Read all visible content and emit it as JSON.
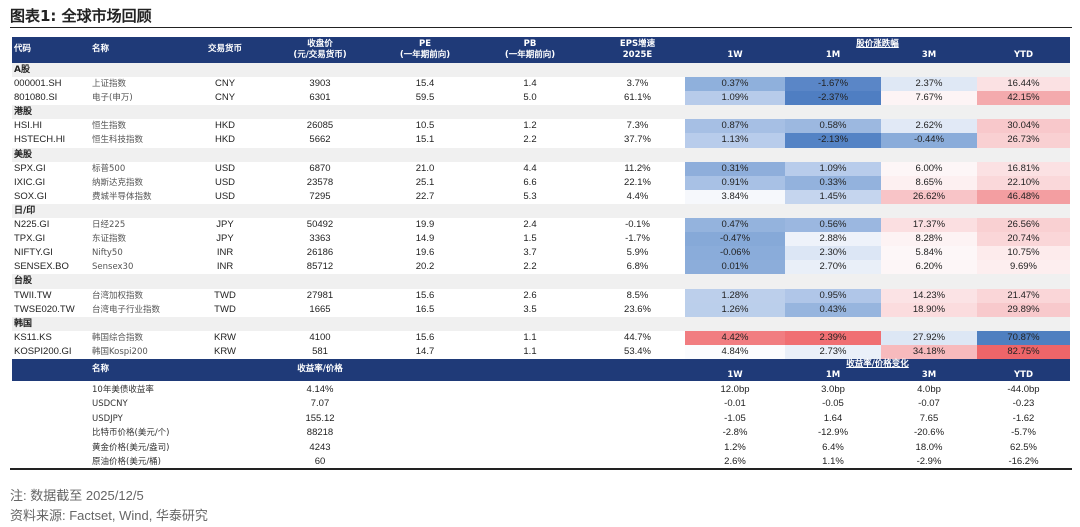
{
  "title": "图表1:  全球市场回顾",
  "header": {
    "code": "代码",
    "name": "名称",
    "currency": "交易货币",
    "close": "收盘价",
    "close_sub": "(元/交易货币)",
    "pe": "PE",
    "pe_sub": "(一年期前向)",
    "pb": "PB",
    "pb_sub": "(一年期前向)",
    "eps": "EPS增速",
    "eps_sub": "2025E",
    "perf": "股价涨跌幅",
    "w1": "1W",
    "m1": "1M",
    "m3": "3M",
    "ytd": "YTD"
  },
  "sections": [
    {
      "label": "A股",
      "rows": [
        {
          "code": "000001.SH",
          "name": "上证指数",
          "cur": "CNY",
          "close": "3903",
          "pe": "15.4",
          "pb": "1.4",
          "eps": "3.7%",
          "perf": [
            [
              "0.37%",
              "#8fb0dc"
            ],
            [
              "-1.67%",
              "#5a86c7"
            ],
            [
              "2.37%",
              "#dfe8f5"
            ],
            [
              "16.44%",
              "#fbe1e3"
            ]
          ]
        },
        {
          "code": "801080.SI",
          "name": "电子(申万)",
          "cur": "CNY",
          "close": "6301",
          "pe": "59.5",
          "pb": "5.0",
          "eps": "61.1%",
          "perf": [
            [
              "1.09%",
              "#b7cbea"
            ],
            [
              "-2.37%",
              "#4f7ec2"
            ],
            [
              "7.67%",
              "#fdf4f5"
            ],
            [
              "42.15%",
              "#f4aaad"
            ]
          ]
        }
      ]
    },
    {
      "label": "港股",
      "rows": [
        {
          "code": "HSI.HI",
          "name": "恒生指数",
          "cur": "HKD",
          "close": "26085",
          "pe": "10.5",
          "pb": "1.2",
          "eps": "7.3%",
          "perf": [
            [
              "0.87%",
              "#a6bfe4"
            ],
            [
              "0.58%",
              "#9cb8e0"
            ],
            [
              "2.62%",
              "#e1e9f6"
            ],
            [
              "30.04%",
              "#f8c8cb"
            ]
          ]
        },
        {
          "code": "HSTECH.HI",
          "name": "恒生科技指数",
          "cur": "HKD",
          "close": "5662",
          "pe": "15.1",
          "pb": "2.2",
          "eps": "37.7%",
          "perf": [
            [
              "1.13%",
              "#b8cceb"
            ],
            [
              "-2.13%",
              "#5483c5"
            ],
            [
              "-0.44%",
              "#8aacda"
            ],
            [
              "26.73%",
              "#f9d0d2"
            ]
          ]
        }
      ]
    },
    {
      "label": "美股",
      "rows": [
        {
          "code": "SPX.GI",
          "name": "标普500",
          "cur": "USD",
          "close": "6870",
          "pe": "21.0",
          "pb": "4.4",
          "eps": "11.2%",
          "perf": [
            [
              "0.31%",
              "#8eaedb"
            ],
            [
              "1.09%",
              "#b8cceb"
            ],
            [
              "6.00%",
              "#fdf6f7"
            ],
            [
              "16.81%",
              "#fbe1e3"
            ]
          ]
        },
        {
          "code": "IXIC.GI",
          "name": "纳斯达克指数",
          "cur": "USD",
          "close": "23578",
          "pe": "25.1",
          "pb": "6.6",
          "eps": "22.1%",
          "perf": [
            [
              "0.91%",
              "#a8c1e5"
            ],
            [
              "0.33%",
              "#93b2dd"
            ],
            [
              "8.65%",
              "#fdf0f1"
            ],
            [
              "22.10%",
              "#fad8da"
            ]
          ]
        },
        {
          "code": "SOX.GI",
          "name": "费城半导体指数",
          "cur": "USD",
          "close": "7295",
          "pe": "22.7",
          "pb": "5.3",
          "eps": "4.4%",
          "perf": [
            [
              "3.84%",
              "#f6f8fc"
            ],
            [
              "1.45%",
              "#c5d5ee"
            ],
            [
              "26.62%",
              "#f8c4c7"
            ],
            [
              "46.48%",
              "#f39ea1"
            ]
          ]
        }
      ]
    },
    {
      "label": "日/印",
      "rows": [
        {
          "code": "N225.GI",
          "name": "日经225",
          "cur": "JPY",
          "close": "50492",
          "pe": "19.9",
          "pb": "2.4",
          "eps": "-0.1%",
          "perf": [
            [
              "0.47%",
              "#94b3dd"
            ],
            [
              "0.56%",
              "#9bb7e0"
            ],
            [
              "17.37%",
              "#fbdfe1"
            ],
            [
              "26.56%",
              "#f9d0d2"
            ]
          ]
        },
        {
          "code": "TPX.GI",
          "name": "东证指数",
          "cur": "JPY",
          "close": "3363",
          "pe": "14.9",
          "pb": "1.5",
          "eps": "-1.7%",
          "perf": [
            [
              "-0.47%",
              "#86a9d8"
            ],
            [
              "2.88%",
              "#eef2fa"
            ],
            [
              "8.28%",
              "#fdf3f4"
            ],
            [
              "20.74%",
              "#fad6d8"
            ]
          ]
        },
        {
          "code": "NIFTY.GI",
          "name": "Nifty50",
          "cur": "INR",
          "close": "26186",
          "pe": "19.6",
          "pb": "3.7",
          "eps": "5.9%",
          "perf": [
            [
              "-0.06%",
              "#8aacda"
            ],
            [
              "2.30%",
              "#dce6f5"
            ],
            [
              "5.84%",
              "#fdf7f8"
            ],
            [
              "10.75%",
              "#fdebec"
            ]
          ]
        },
        {
          "code": "SENSEX.BO",
          "name": "Sensex30",
          "cur": "INR",
          "close": "85712",
          "pe": "20.2",
          "pb": "2.2",
          "eps": "6.8%",
          "perf": [
            [
              "0.01%",
              "#8cadda"
            ],
            [
              "2.70%",
              "#e9eff8"
            ],
            [
              "6.20%",
              "#fdf6f7"
            ],
            [
              "9.69%",
              "#fdeeef"
            ]
          ]
        }
      ]
    },
    {
      "label": "台股",
      "rows": [
        {
          "code": "TWII.TW",
          "name": "台湾加权指数",
          "cur": "TWD",
          "close": "27981",
          "pe": "15.6",
          "pb": "2.6",
          "eps": "8.5%",
          "perf": [
            [
              "1.28%",
              "#bccfeb"
            ],
            [
              "0.95%",
              "#b0c6e8"
            ],
            [
              "14.23%",
              "#fbe3e5"
            ],
            [
              "21.47%",
              "#fad6d8"
            ]
          ]
        },
        {
          "code": "TWSE020.TW",
          "name": "台湾电子行业指数",
          "cur": "TWD",
          "close": "1665",
          "pe": "16.5",
          "pb": "3.5",
          "eps": "23.6%",
          "perf": [
            [
              "1.26%",
              "#bbcfeb"
            ],
            [
              "0.43%",
              "#97b5de"
            ],
            [
              "18.90%",
              "#fbdcde"
            ],
            [
              "29.89%",
              "#f8c9cc"
            ]
          ]
        }
      ]
    },
    {
      "label": "韩国",
      "rows": [
        {
          "code": "KS11.KS",
          "name": "韩国综合指数",
          "cur": "KRW",
          "close": "4100",
          "pe": "15.6",
          "pb": "1.1",
          "eps": "44.7%",
          "perf": [
            [
              "4.42%",
              "#f17d81"
            ],
            [
              "2.39%",
              "#f06f73"
            ],
            [
              "27.92%",
              "#dde7f5"
            ],
            [
              "70.87%",
              "#4f7fc0"
            ]
          ]
        },
        {
          "code": "KOSPI200.GI",
          "name": "韩国Kospi200",
          "cur": "KRW",
          "close": "581",
          "pe": "14.7",
          "pb": "1.1",
          "eps": "53.4%",
          "perf": [
            [
              "4.84%",
              "#fbfcfe"
            ],
            [
              "2.73%",
              "#eaf0f9"
            ],
            [
              "34.18%",
              "#f7babd"
            ],
            [
              "82.75%",
              "#ee6569"
            ]
          ]
        }
      ]
    }
  ],
  "macro": {
    "header": {
      "name": "名称",
      "value": "收益率/价格",
      "change": "收益率/价格变化",
      "w1": "1W",
      "m1": "1M",
      "m3": "3M",
      "ytd": "YTD"
    },
    "rows": [
      {
        "name": "10年美债收益率",
        "value": "4.14%",
        "ch": [
          "12.0bp",
          "3.0bp",
          "4.0bp",
          "-44.0bp"
        ]
      },
      {
        "name": "USDCNY",
        "value": "7.07",
        "ch": [
          "-0.01",
          "-0.05",
          "-0.07",
          "-0.23"
        ]
      },
      {
        "name": "USDJPY",
        "value": "155.12",
        "ch": [
          "-1.05",
          "1.64",
          "7.65",
          "-1.62"
        ]
      },
      {
        "name": "比特币价格(美元/个)",
        "value": "88218",
        "ch": [
          "-2.8%",
          "-12.9%",
          "-20.6%",
          "-5.7%"
        ]
      },
      {
        "name": "黄金价格(美元/盎司)",
        "value": "4243",
        "ch": [
          "1.2%",
          "6.4%",
          "18.0%",
          "62.5%"
        ]
      },
      {
        "name": "原油价格(美元/桶)",
        "value": "60",
        "ch": [
          "2.6%",
          "1.1%",
          "-2.9%",
          "-16.2%"
        ]
      }
    ]
  },
  "notes": {
    "date": "注: 数据截至 2025/12/5",
    "source": "资料来源: Factset, Wind, 华泰研究"
  }
}
